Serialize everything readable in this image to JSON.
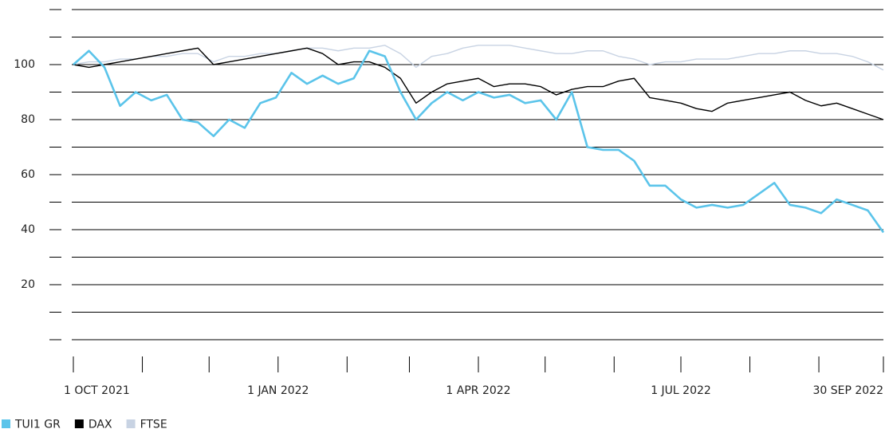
{
  "chart_data": {
    "type": "line",
    "x": [
      "2021-10-01",
      "2021-10-08",
      "2021-10-15",
      "2021-10-22",
      "2021-10-29",
      "2021-11-05",
      "2021-11-12",
      "2021-11-19",
      "2021-11-26",
      "2021-12-03",
      "2021-12-10",
      "2021-12-17",
      "2021-12-24",
      "2021-12-31",
      "2022-01-07",
      "2022-01-14",
      "2022-01-21",
      "2022-01-28",
      "2022-02-04",
      "2022-02-11",
      "2022-02-18",
      "2022-02-25",
      "2022-03-04",
      "2022-03-11",
      "2022-03-18",
      "2022-03-25",
      "2022-04-01",
      "2022-04-08",
      "2022-04-15",
      "2022-04-22",
      "2022-04-29",
      "2022-05-06",
      "2022-05-13",
      "2022-05-20",
      "2022-05-27",
      "2022-06-03",
      "2022-06-10",
      "2022-06-17",
      "2022-06-24",
      "2022-07-01",
      "2022-07-08",
      "2022-07-15",
      "2022-07-22",
      "2022-07-29",
      "2022-08-05",
      "2022-08-12",
      "2022-08-19",
      "2022-08-26",
      "2022-09-02",
      "2022-09-09",
      "2022-09-16",
      "2022-09-23",
      "2022-09-30"
    ],
    "series": [
      {
        "name": "TUI1 GR",
        "color": "#5bc4ea",
        "values": [
          100,
          105,
          99,
          85,
          90,
          87,
          89,
          80,
          79,
          74,
          80,
          77,
          86,
          88,
          97,
          93,
          96,
          93,
          95,
          105,
          103,
          90,
          80,
          86,
          90,
          87,
          90,
          88,
          89,
          86,
          87,
          80,
          90,
          70,
          69,
          69,
          65,
          56,
          56,
          51,
          48,
          49,
          48,
          49,
          53,
          57,
          49,
          48,
          46,
          51,
          49,
          47,
          39
        ]
      },
      {
        "name": "DAX",
        "color": "#000000",
        "values": [
          100,
          99,
          100,
          101,
          102,
          103,
          104,
          105,
          106,
          100,
          101,
          102,
          103,
          104,
          105,
          106,
          104,
          100,
          101,
          101,
          99,
          95,
          86,
          90,
          93,
          94,
          95,
          92,
          93,
          93,
          92,
          89,
          91,
          92,
          92,
          94,
          95,
          88,
          87,
          86,
          84,
          83,
          86,
          87,
          88,
          89,
          90,
          87,
          85,
          86,
          84,
          82,
          80
        ]
      },
      {
        "name": "FTSE",
        "color": "#c8d3e3",
        "values": [
          100,
          101,
          101,
          102,
          102,
          103,
          103,
          104,
          104,
          101,
          103,
          103,
          104,
          104,
          105,
          106,
          106,
          105,
          106,
          106,
          107,
          104,
          99,
          103,
          104,
          106,
          107,
          107,
          107,
          106,
          105,
          104,
          104,
          105,
          105,
          103,
          102,
          100,
          101,
          101,
          102,
          102,
          102,
          103,
          104,
          104,
          105,
          105,
          104,
          104,
          103,
          101,
          98
        ]
      }
    ],
    "xlim": [
      "2021-10-01",
      "2022-09-30"
    ],
    "xticks": [
      {
        "value": "2021-10-01",
        "label": "1 OCT 2021"
      },
      {
        "value": "2022-01-01",
        "label": "1 JAN 2022"
      },
      {
        "value": "2022-04-01",
        "label": "1 APR 2022"
      },
      {
        "value": "2022-07-01",
        "label": "1 JUL 2022"
      },
      {
        "value": "2022-09-30",
        "label": "30 SEP 2022"
      }
    ],
    "xminor_ticks": [
      "2021-11-01",
      "2021-12-01",
      "2022-02-01",
      "2022-03-01",
      "2022-05-01",
      "2022-06-01",
      "2022-08-01",
      "2022-09-01"
    ],
    "ylim": [
      0,
      120
    ],
    "yticks": [
      20,
      40,
      60,
      80,
      100
    ],
    "yminor_ticks": [
      0,
      10,
      30,
      50,
      70,
      90,
      110,
      120
    ],
    "grid": true,
    "legend": "bottom-left"
  }
}
